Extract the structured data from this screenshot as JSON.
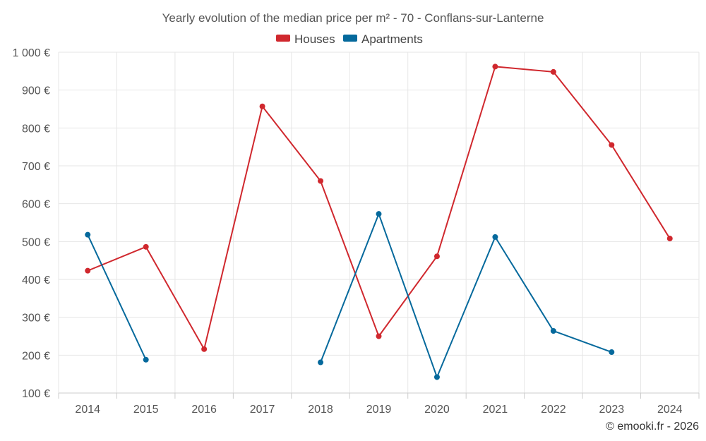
{
  "chart_data": {
    "type": "line",
    "title": "Yearly evolution of the median price per m² - 70 - Conflans-sur-Lanterne",
    "x": [
      "2014",
      "2015",
      "2016",
      "2017",
      "2018",
      "2019",
      "2020",
      "2021",
      "2022",
      "2023",
      "2024"
    ],
    "ylim": [
      100,
      1000
    ],
    "y_ticks": [
      100,
      200,
      300,
      400,
      500,
      600,
      700,
      800,
      900,
      1000
    ],
    "y_tick_labels": [
      "100 €",
      "200 €",
      "300 €",
      "400 €",
      "500 €",
      "600 €",
      "700 €",
      "800 €",
      "900 €",
      "1 000 €"
    ],
    "legend_position": "top-center",
    "grid": true,
    "series": [
      {
        "name": "Houses",
        "color": "#d0282e",
        "values": [
          423,
          486,
          216,
          857,
          660,
          250,
          461,
          962,
          948,
          755,
          508
        ]
      },
      {
        "name": "Apartments",
        "color": "#05699c",
        "values": [
          518,
          188,
          null,
          null,
          181,
          573,
          142,
          512,
          264,
          208,
          null
        ]
      }
    ]
  },
  "credit": "© emooki.fr - 2026"
}
